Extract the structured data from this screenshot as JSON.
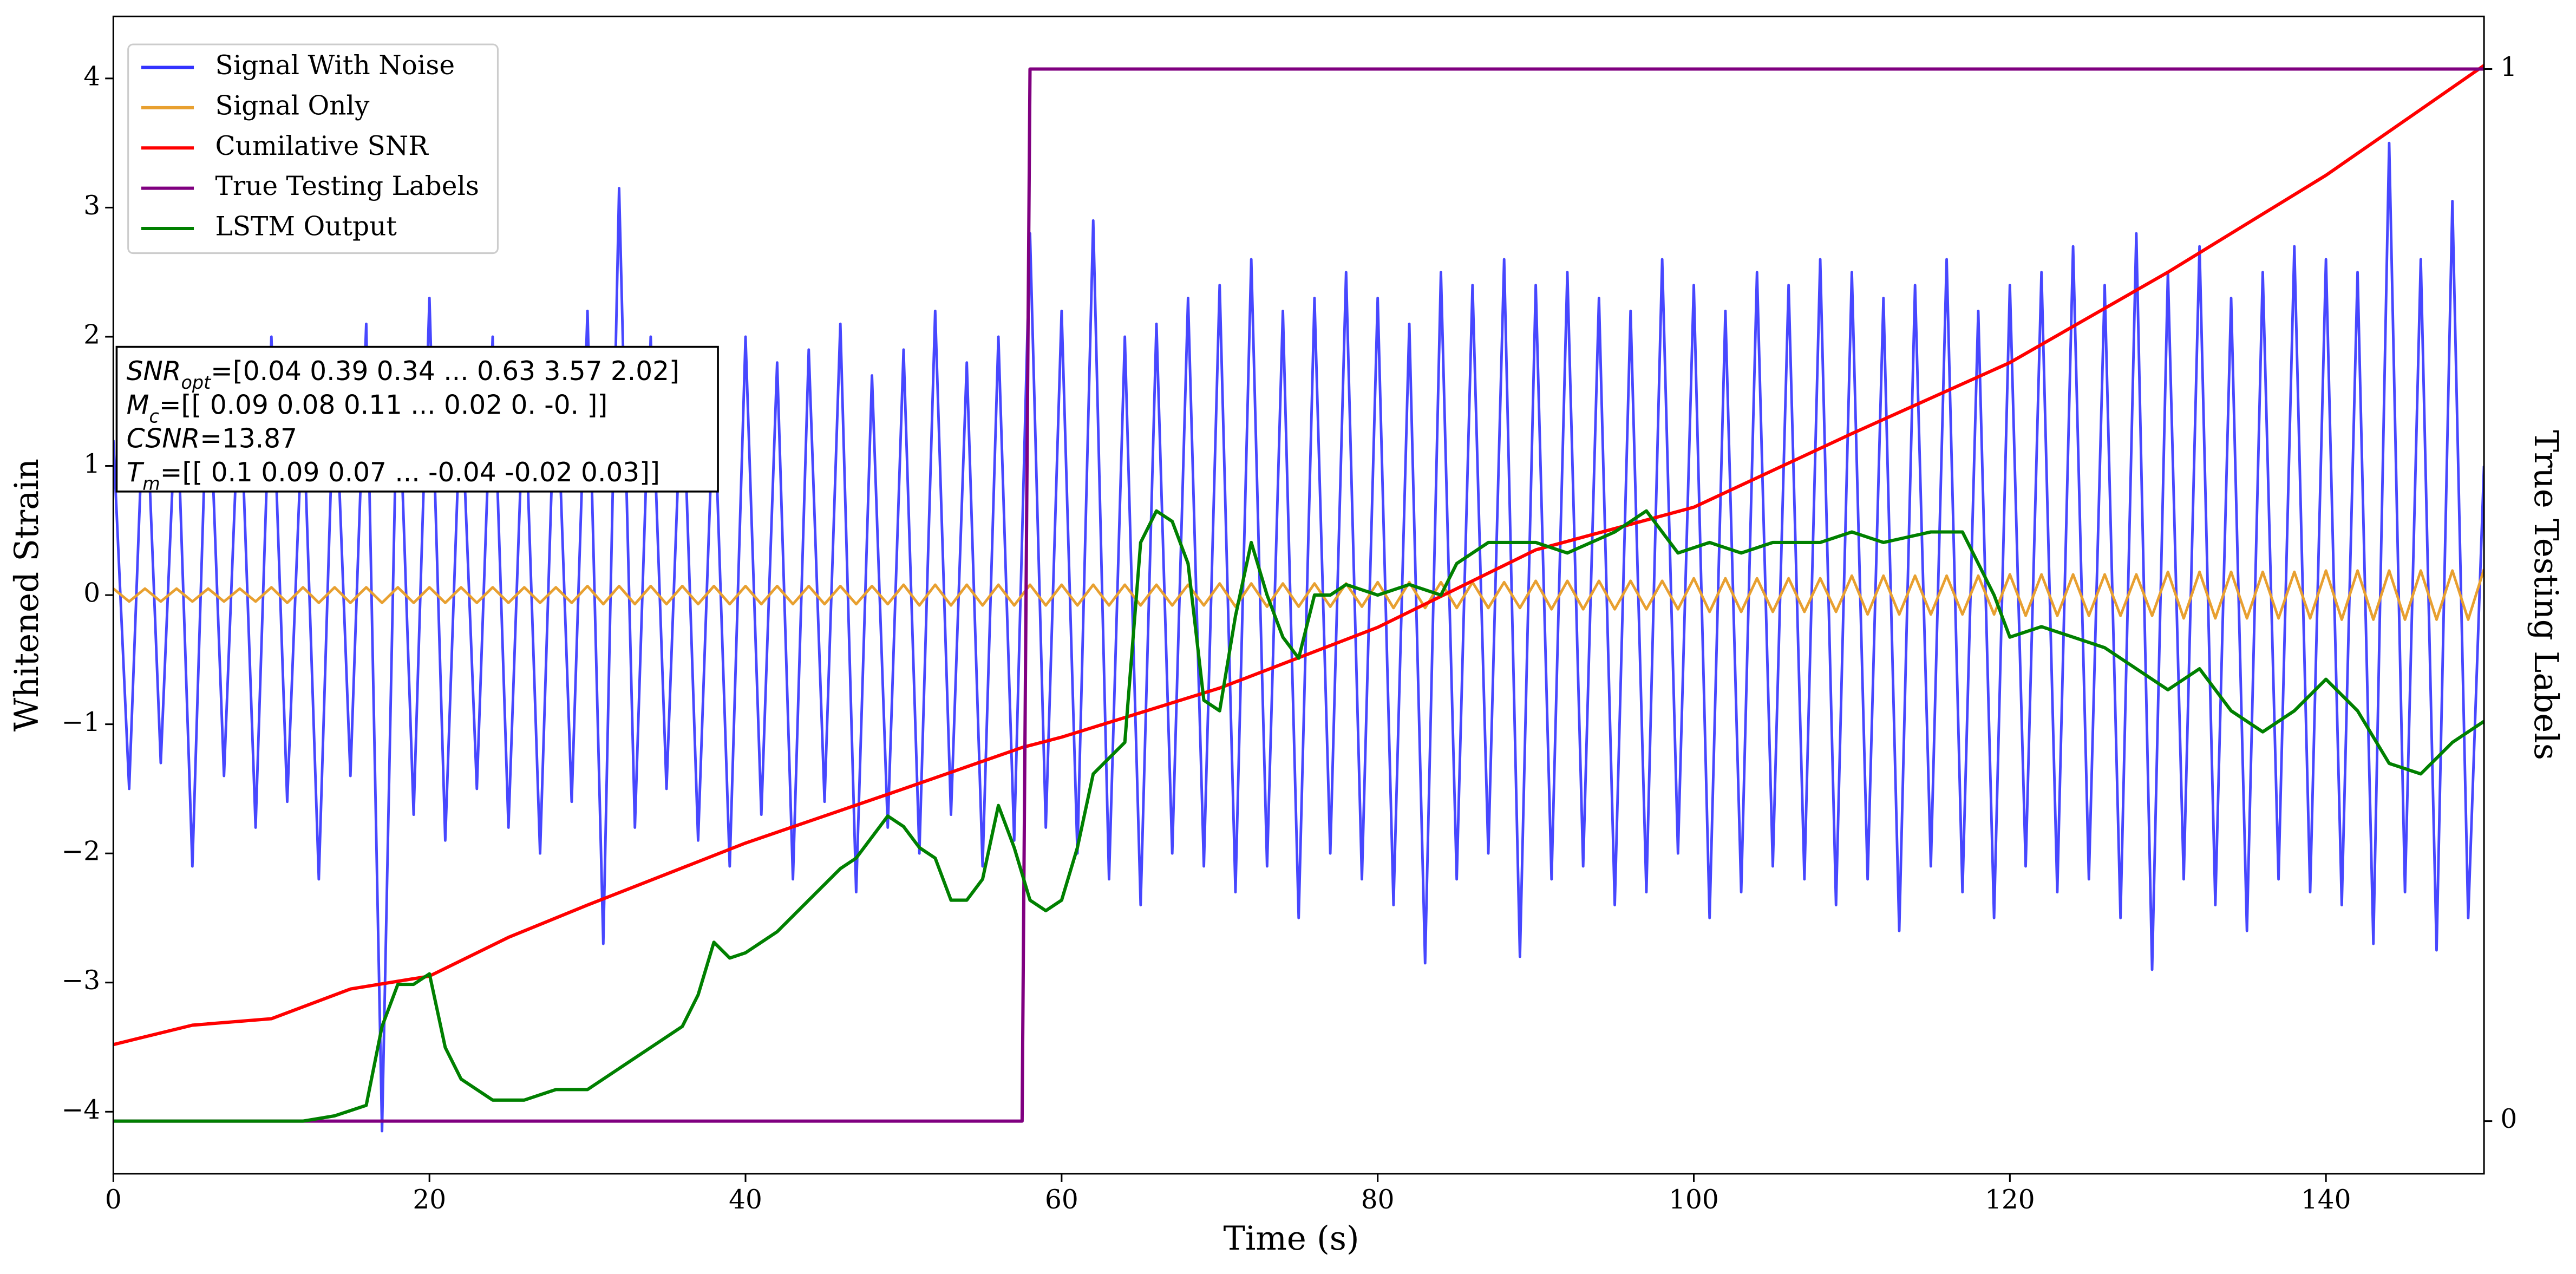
{
  "chart_data": {
    "type": "line",
    "xlabel": "Time (s)",
    "ylabel": "Whitened Strain",
    "y2label": "True Testing Labels",
    "xlim": [
      0,
      150
    ],
    "ylim": [
      -4.48,
      4.48
    ],
    "y2lim": [
      -0.05,
      1.05
    ],
    "xticks": [
      0,
      20,
      40,
      60,
      80,
      100,
      120,
      140
    ],
    "yticks": [
      {
        "value": -4,
        "label": "−4"
      },
      {
        "value": -3,
        "label": "−3"
      },
      {
        "value": -2,
        "label": "−2"
      },
      {
        "value": -1,
        "label": "−1"
      },
      0,
      1,
      2,
      3,
      4
    ],
    "y2ticks": [
      0,
      1
    ],
    "legend": "upper left",
    "x": [
      0,
      1,
      2,
      3,
      4,
      5,
      6,
      7,
      8,
      9,
      10,
      11,
      12,
      13,
      14,
      15,
      16,
      17,
      18,
      19,
      20,
      21,
      22,
      23,
      24,
      25,
      26,
      27,
      28,
      29,
      30,
      31,
      32,
      33,
      34,
      35,
      36,
      37,
      38,
      39,
      40,
      41,
      42,
      43,
      44,
      45,
      46,
      47,
      48,
      49,
      50,
      51,
      52,
      53,
      54,
      55,
      56,
      57,
      58,
      59,
      60,
      61,
      62,
      63,
      64,
      65,
      66,
      67,
      68,
      69,
      70,
      71,
      72,
      73,
      74,
      75,
      76,
      77,
      78,
      79,
      80,
      81,
      82,
      83,
      84,
      85,
      86,
      87,
      88,
      89,
      90,
      91,
      92,
      93,
      94,
      95,
      96,
      97,
      98,
      99,
      100,
      101,
      102,
      103,
      104,
      105,
      106,
      107,
      108,
      109,
      110,
      111,
      112,
      113,
      114,
      115,
      116,
      117,
      118,
      119,
      120,
      121,
      122,
      123,
      124,
      125,
      126,
      127,
      128,
      129,
      130,
      131,
      132,
      133,
      134,
      135,
      136,
      137,
      138,
      139,
      140,
      141,
      142,
      143,
      144,
      145,
      146,
      147,
      148,
      149,
      150
    ],
    "series": [
      {
        "name": "Signal With Noise",
        "color": "#3333ff",
        "values": [
          1.2,
          -1.5,
          1.8,
          -1.3,
          1.6,
          -2.1,
          1.9,
          -1.4,
          1.7,
          -1.8,
          2.0,
          -1.6,
          1.5,
          -2.2,
          1.8,
          -1.4,
          2.1,
          -4.15,
          1.9,
          -1.7,
          2.3,
          -1.9,
          1.6,
          -1.5,
          2.0,
          -1.8,
          1.7,
          -2.0,
          1.9,
          -1.6,
          2.2,
          -2.7,
          3.15,
          -1.8,
          2.0,
          -1.5,
          1.8,
          -1.9,
          1.6,
          -2.1,
          2.0,
          -1.7,
          1.8,
          -2.2,
          1.9,
          -1.6,
          2.1,
          -2.3,
          1.7,
          -1.8,
          1.9,
          -2.0,
          2.2,
          -1.7,
          1.8,
          -2.1,
          2.0,
          -1.9,
          2.8,
          -1.8,
          2.2,
          -2.0,
          2.9,
          -2.2,
          2.0,
          -2.4,
          2.1,
          -2.0,
          2.3,
          -2.1,
          2.4,
          -2.3,
          2.6,
          -2.1,
          2.2,
          -2.5,
          2.3,
          -2.0,
          2.5,
          -2.2,
          2.3,
          -2.4,
          2.1,
          -2.85,
          2.5,
          -2.2,
          2.4,
          -2.0,
          2.6,
          -2.8,
          2.4,
          -2.2,
          2.5,
          -2.1,
          2.3,
          -2.4,
          2.2,
          -2.3,
          2.6,
          -2.0,
          2.4,
          -2.5,
          2.2,
          -2.3,
          2.5,
          -2.1,
          2.4,
          -2.2,
          2.6,
          -2.4,
          2.5,
          -2.2,
          2.3,
          -2.6,
          2.4,
          -2.1,
          2.6,
          -2.3,
          2.2,
          -2.5,
          2.4,
          -2.1,
          2.5,
          -2.3,
          2.7,
          -2.2,
          2.4,
          -2.5,
          2.8,
          -2.9,
          2.5,
          -2.2,
          2.7,
          -2.4,
          2.3,
          -2.6,
          2.5,
          -2.2,
          2.7,
          -2.3,
          2.6,
          -2.4,
          2.5,
          -2.7,
          3.5,
          -2.3,
          2.6,
          -2.75,
          3.05,
          -2.5,
          1.0
        ]
      },
      {
        "name": "Signal Only",
        "color": "#e8a030",
        "values": [
          0.05,
          -0.05,
          0.05,
          -0.05,
          0.05,
          -0.05,
          0.05,
          -0.05,
          0.05,
          -0.05,
          0.06,
          -0.06,
          0.06,
          -0.06,
          0.06,
          -0.06,
          0.06,
          -0.06,
          0.06,
          -0.06,
          0.06,
          -0.06,
          0.06,
          -0.06,
          0.06,
          -0.06,
          0.06,
          -0.06,
          0.06,
          -0.06,
          0.07,
          -0.07,
          0.07,
          -0.07,
          0.07,
          -0.07,
          0.07,
          -0.07,
          0.07,
          -0.07,
          0.07,
          -0.07,
          0.07,
          -0.07,
          0.07,
          -0.07,
          0.07,
          -0.07,
          0.07,
          -0.07,
          0.08,
          -0.08,
          0.08,
          -0.08,
          0.08,
          -0.08,
          0.08,
          -0.08,
          0.08,
          -0.08,
          0.08,
          -0.08,
          0.08,
          -0.08,
          0.08,
          -0.08,
          0.08,
          -0.08,
          0.08,
          -0.08,
          0.09,
          -0.09,
          0.09,
          -0.09,
          0.09,
          -0.09,
          0.09,
          -0.09,
          0.09,
          -0.09,
          0.1,
          -0.1,
          0.1,
          -0.1,
          0.1,
          -0.1,
          0.1,
          -0.1,
          0.1,
          -0.1,
          0.11,
          -0.11,
          0.11,
          -0.11,
          0.11,
          -0.11,
          0.11,
          -0.11,
          0.11,
          -0.11,
          0.13,
          -0.13,
          0.13,
          -0.13,
          0.13,
          -0.13,
          0.13,
          -0.13,
          0.13,
          -0.13,
          0.15,
          -0.15,
          0.15,
          -0.15,
          0.15,
          -0.15,
          0.15,
          -0.15,
          0.15,
          -0.15,
          0.16,
          -0.16,
          0.16,
          -0.16,
          0.16,
          -0.16,
          0.16,
          -0.16,
          0.16,
          -0.16,
          0.18,
          -0.18,
          0.18,
          -0.18,
          0.18,
          -0.18,
          0.18,
          -0.18,
          0.18,
          -0.18,
          0.19,
          -0.19,
          0.19,
          -0.19,
          0.19,
          -0.19,
          0.19,
          -0.19,
          0.19,
          -0.19,
          0.2
        ]
      },
      {
        "name": "Cumilative SNR",
        "color": "#ff0000",
        "x": [
          0,
          5,
          10,
          15,
          20,
          25,
          30,
          40,
          50,
          57.5,
          60,
          70,
          80,
          90,
          100,
          110,
          120,
          130,
          140,
          150
        ],
        "values": [
          -3.48,
          -3.33,
          -3.28,
          -3.05,
          -2.95,
          -2.65,
          -2.4,
          -1.92,
          -1.5,
          -1.18,
          -1.1,
          -0.72,
          -0.25,
          0.35,
          0.68,
          1.25,
          1.8,
          2.5,
          3.25,
          4.1
        ]
      },
      {
        "name": "True Testing Labels",
        "color": "#800080",
        "axis": "y2",
        "x": [
          0,
          57.5,
          58,
          150
        ],
        "values": [
          0,
          0,
          1,
          1
        ]
      },
      {
        "name": "LSTM Output",
        "color": "#008000",
        "axis": "y2",
        "x": [
          0,
          12,
          14,
          16,
          17,
          18,
          19,
          20,
          21,
          22,
          24,
          26,
          28,
          30,
          32,
          34,
          36,
          37,
          38,
          39,
          40,
          42,
          44,
          46,
          47,
          48,
          49,
          50,
          51,
          52,
          53,
          54,
          55,
          56,
          57,
          58,
          59,
          60,
          61,
          62,
          64,
          65,
          66,
          67,
          68,
          69,
          70,
          71,
          72,
          73,
          74,
          75,
          76,
          77,
          78,
          80,
          82,
          84,
          85,
          87,
          90,
          92,
          95,
          97,
          99,
          101,
          103,
          105,
          108,
          110,
          112,
          115,
          117,
          119,
          120,
          122,
          124,
          126,
          128,
          130,
          132,
          134,
          136,
          138,
          140,
          142,
          144,
          146,
          148,
          150
        ],
        "values": [
          0,
          0,
          0.005,
          0.015,
          0.09,
          0.13,
          0.13,
          0.14,
          0.07,
          0.04,
          0.02,
          0.02,
          0.03,
          0.03,
          0.05,
          0.07,
          0.09,
          0.12,
          0.17,
          0.155,
          0.16,
          0.18,
          0.21,
          0.24,
          0.25,
          0.27,
          0.29,
          0.28,
          0.26,
          0.25,
          0.21,
          0.21,
          0.23,
          0.3,
          0.26,
          0.21,
          0.2,
          0.21,
          0.26,
          0.33,
          0.36,
          0.55,
          0.58,
          0.57,
          0.53,
          0.4,
          0.39,
          0.48,
          0.55,
          0.5,
          0.46,
          0.44,
          0.5,
          0.5,
          0.51,
          0.5,
          0.51,
          0.5,
          0.53,
          0.55,
          0.55,
          0.54,
          0.56,
          0.58,
          0.54,
          0.55,
          0.54,
          0.55,
          0.55,
          0.56,
          0.55,
          0.56,
          0.56,
          0.5,
          0.46,
          0.47,
          0.46,
          0.45,
          0.43,
          0.41,
          0.43,
          0.39,
          0.37,
          0.39,
          0.42,
          0.39,
          0.34,
          0.33,
          0.36,
          0.38
        ]
      }
    ],
    "annotations": [
      {
        "var": "SNR",
        "sub": "opt",
        "text": "=[0.04 0.39 0.34 ... 0.63 3.57 2.02]"
      },
      {
        "var": "M",
        "sub": "c",
        "text": "=[[ 0.09  0.08  0.11 ...  0.02  0.   -0.  ]]"
      },
      {
        "var": "CSNR",
        "text": "=13.87"
      },
      {
        "var": "T",
        "sub": "m",
        "text": "=[[ 0.1   0.09  0.07 ... -0.04 -0.02  0.03]]"
      }
    ]
  }
}
